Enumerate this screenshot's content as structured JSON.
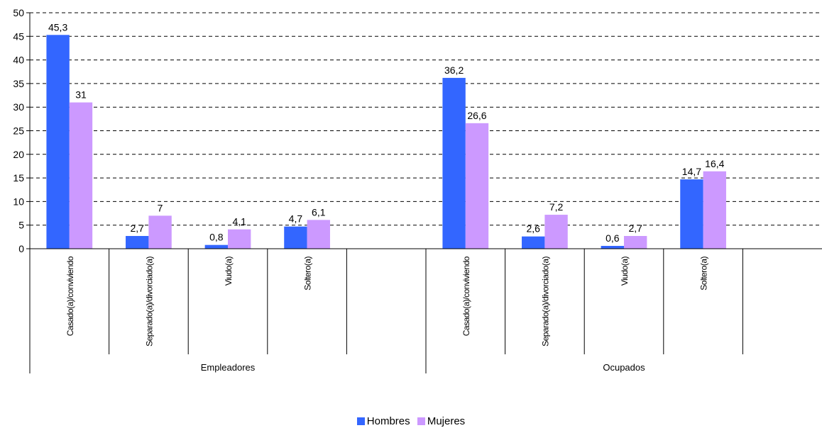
{
  "chart_data": {
    "type": "bar",
    "groups": [
      {
        "label": "Empleadores",
        "categories": [
          "Casado(a)/conviviendo",
          "Separado(a)/divorciado(a)",
          "Viudo(a)",
          "Soltero(a)",
          ""
        ]
      },
      {
        "label": "Ocupados",
        "categories": [
          "Casado(a)/conviviendo",
          "Separado(a)/divorciado(a)",
          "Viudo(a)",
          "Soltero(a)",
          ""
        ]
      }
    ],
    "series": [
      {
        "name": "Hombres",
        "color": "#3366ff",
        "values": [
          45.3,
          2.7,
          0.8,
          4.7,
          null,
          36.2,
          2.6,
          0.6,
          14.7,
          null
        ],
        "labels": [
          "45,3",
          "2,7",
          "0,8",
          "4,7",
          "",
          "36,2",
          "2,6",
          "0,6",
          "14,7",
          ""
        ]
      },
      {
        "name": "Mujeres",
        "color": "#cc99ff",
        "values": [
          31,
          7,
          4.1,
          6.1,
          null,
          26.6,
          7.2,
          2.7,
          16.4,
          null
        ],
        "labels": [
          "31",
          "7",
          "4,1",
          "6,1",
          "",
          "26,6",
          "7,2",
          "2,7",
          "16,4",
          ""
        ]
      }
    ],
    "yticks": [
      "0",
      "5",
      "10",
      "15",
      "20",
      "25",
      "30",
      "35",
      "40",
      "45",
      "50"
    ],
    "ylim": [
      0,
      50
    ],
    "grid": true,
    "legend_position": "bottom"
  }
}
